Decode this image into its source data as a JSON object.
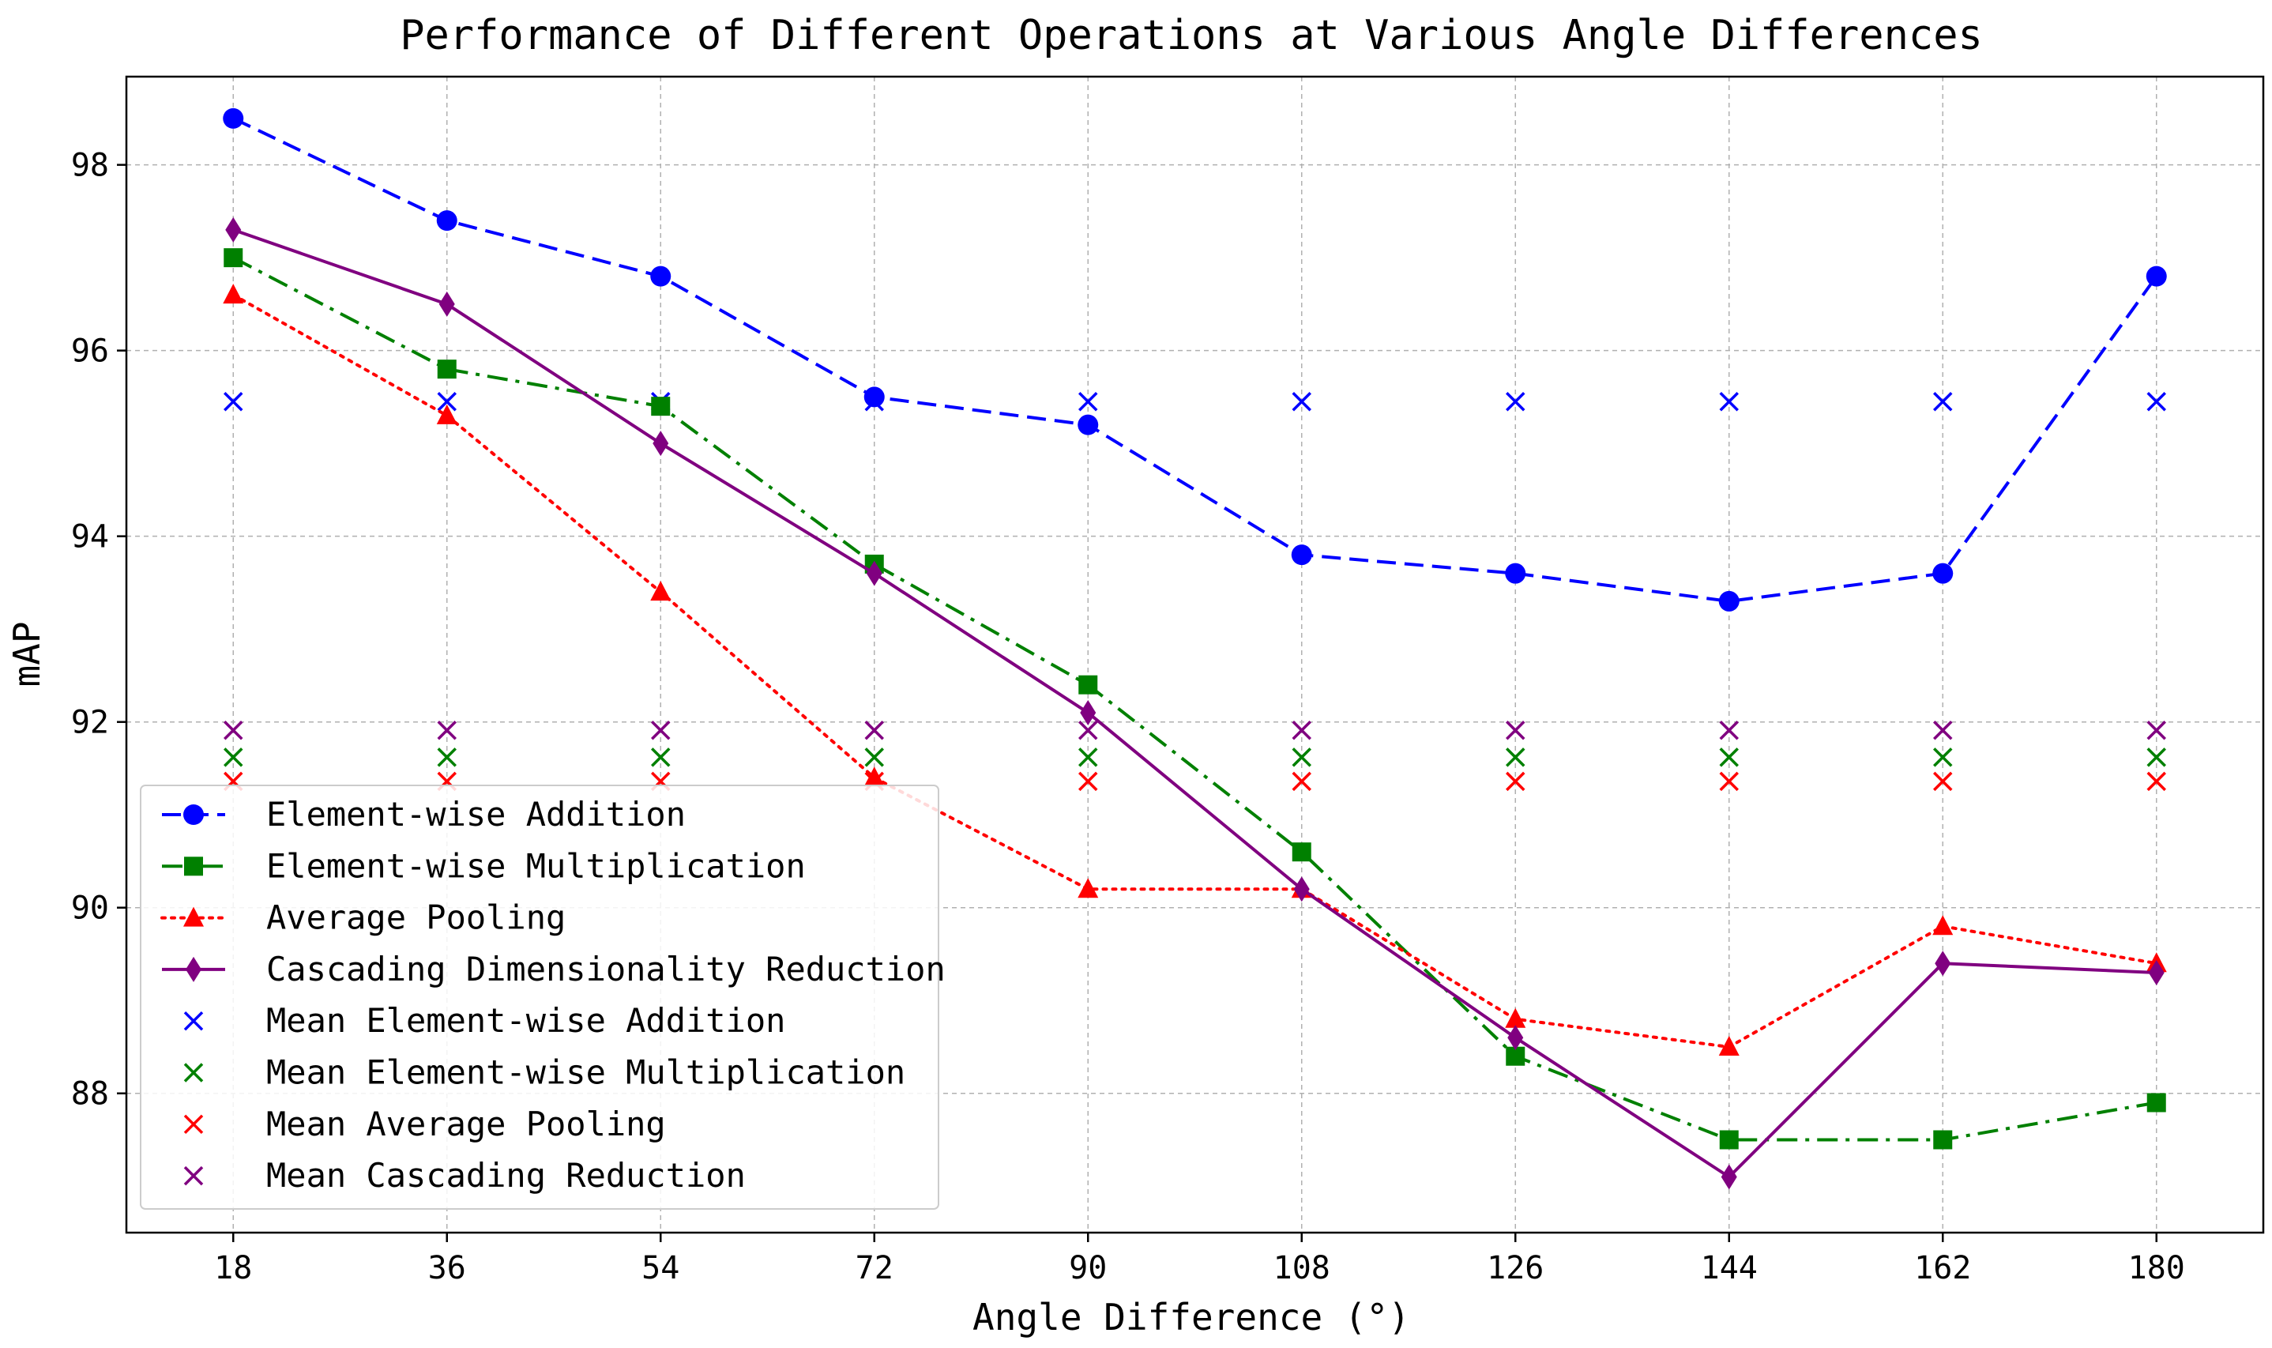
{
  "chart_data": {
    "type": "line",
    "title": "Performance of Different Operations at Various Angle Differences",
    "xlabel": "Angle Difference (°)",
    "ylabel": "mAP",
    "x": [
      18,
      36,
      54,
      72,
      90,
      108,
      126,
      144,
      162,
      180
    ],
    "xticks": [
      "18",
      "36",
      "54",
      "72",
      "90",
      "108",
      "126",
      "144",
      "162",
      "180"
    ],
    "xlim": [
      9,
      189
    ],
    "ylim": [
      86.5,
      98.95
    ],
    "yticks": [
      88,
      90,
      92,
      94,
      96,
      98
    ],
    "grid": true,
    "legend_position": "bottom-left",
    "series": [
      {
        "name": "Element-wise Addition",
        "kind": "line",
        "color": "#0000ff",
        "linestyle": "dashed",
        "marker": "circle",
        "values": [
          98.5,
          97.4,
          96.8,
          95.5,
          95.2,
          93.8,
          93.6,
          93.3,
          93.6,
          96.8
        ]
      },
      {
        "name": "Element-wise Multiplication",
        "kind": "line",
        "color": "#008000",
        "linestyle": "dashdot",
        "marker": "square",
        "values": [
          97.0,
          95.8,
          95.4,
          93.7,
          92.4,
          90.6,
          88.4,
          87.5,
          87.5,
          87.9
        ]
      },
      {
        "name": "Average Pooling",
        "kind": "line",
        "color": "#ff0000",
        "linestyle": "dotted",
        "marker": "triangle",
        "values": [
          96.6,
          95.3,
          93.4,
          91.4,
          90.2,
          90.2,
          88.8,
          88.5,
          89.8,
          89.4
        ]
      },
      {
        "name": "Cascading Dimensionality Reduction",
        "kind": "line",
        "color": "#800080",
        "linestyle": "solid",
        "marker": "diamond",
        "values": [
          97.3,
          96.5,
          95.0,
          93.6,
          92.1,
          90.2,
          88.6,
          87.1,
          89.4,
          89.3
        ]
      },
      {
        "name": "Mean Element-wise Addition",
        "kind": "scatter",
        "color": "#0000ff",
        "marker": "x",
        "values": [
          95.45,
          95.45,
          95.45,
          95.45,
          95.45,
          95.45,
          95.45,
          95.45,
          95.45,
          95.45
        ]
      },
      {
        "name": "Mean Element-wise Multiplication",
        "kind": "scatter",
        "color": "#008000",
        "marker": "x",
        "values": [
          91.62,
          91.62,
          91.62,
          91.62,
          91.62,
          91.62,
          91.62,
          91.62,
          91.62,
          91.62
        ]
      },
      {
        "name": "Mean Average Pooling",
        "kind": "scatter",
        "color": "#ff0000",
        "marker": "x",
        "values": [
          91.36,
          91.36,
          91.36,
          91.36,
          91.36,
          91.36,
          91.36,
          91.36,
          91.36,
          91.36
        ]
      },
      {
        "name": "Mean Cascading Reduction",
        "kind": "scatter",
        "color": "#800080",
        "marker": "x",
        "values": [
          91.91,
          91.91,
          91.91,
          91.91,
          91.91,
          91.91,
          91.91,
          91.91,
          91.91,
          91.91
        ]
      }
    ]
  }
}
